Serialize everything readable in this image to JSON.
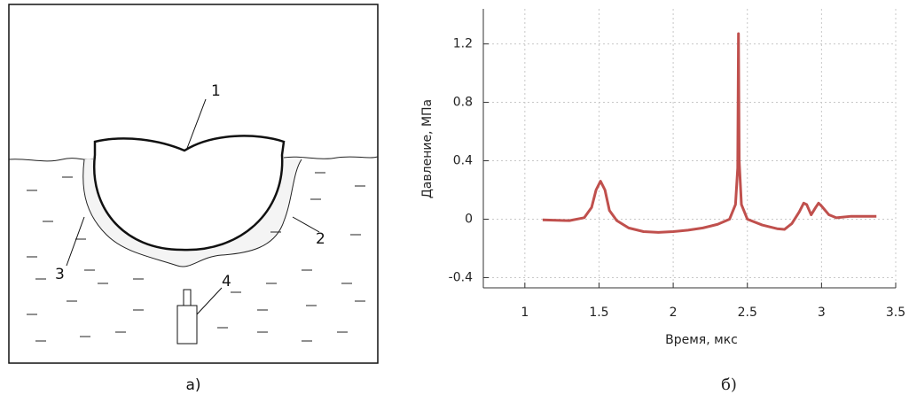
{
  "diagram": {
    "labels": [
      "1",
      "2",
      "3",
      "4"
    ],
    "caption": "а)"
  },
  "chart_data": {
    "type": "line",
    "caption": "б)",
    "x_label": "Время, мкс",
    "y_label": "Давление, МПа",
    "xlim": [
      0.72,
      3.5
    ],
    "xticks": [
      1,
      1.5,
      2,
      2.5,
      3,
      3.5
    ],
    "ylim": [
      -0.47,
      1.44
    ],
    "yticks": [
      -0.4,
      0,
      0.4,
      0.8,
      1.2
    ],
    "grid": true,
    "series": [
      {
        "color": "#c0504d",
        "x": [
          1.12,
          1.3,
          1.4,
          1.45,
          1.48,
          1.51,
          1.54,
          1.57,
          1.62,
          1.7,
          1.8,
          1.9,
          2.0,
          2.1,
          2.2,
          2.3,
          2.38,
          2.42,
          2.435,
          2.44,
          2.445,
          2.46,
          2.5,
          2.6,
          2.7,
          2.75,
          2.8,
          2.85,
          2.88,
          2.9,
          2.93,
          2.96,
          2.98,
          3.0,
          3.05,
          3.1,
          3.2,
          3.3,
          3.37
        ],
        "values": [
          -0.005,
          -0.01,
          0.01,
          0.08,
          0.2,
          0.26,
          0.2,
          0.06,
          -0.01,
          -0.06,
          -0.085,
          -0.09,
          -0.085,
          -0.075,
          -0.06,
          -0.035,
          0.0,
          0.1,
          0.35,
          1.27,
          0.4,
          0.1,
          0.0,
          -0.04,
          -0.065,
          -0.07,
          -0.03,
          0.05,
          0.11,
          0.1,
          0.03,
          0.08,
          0.11,
          0.09,
          0.03,
          0.01,
          0.02,
          0.02,
          0.02
        ]
      }
    ]
  }
}
